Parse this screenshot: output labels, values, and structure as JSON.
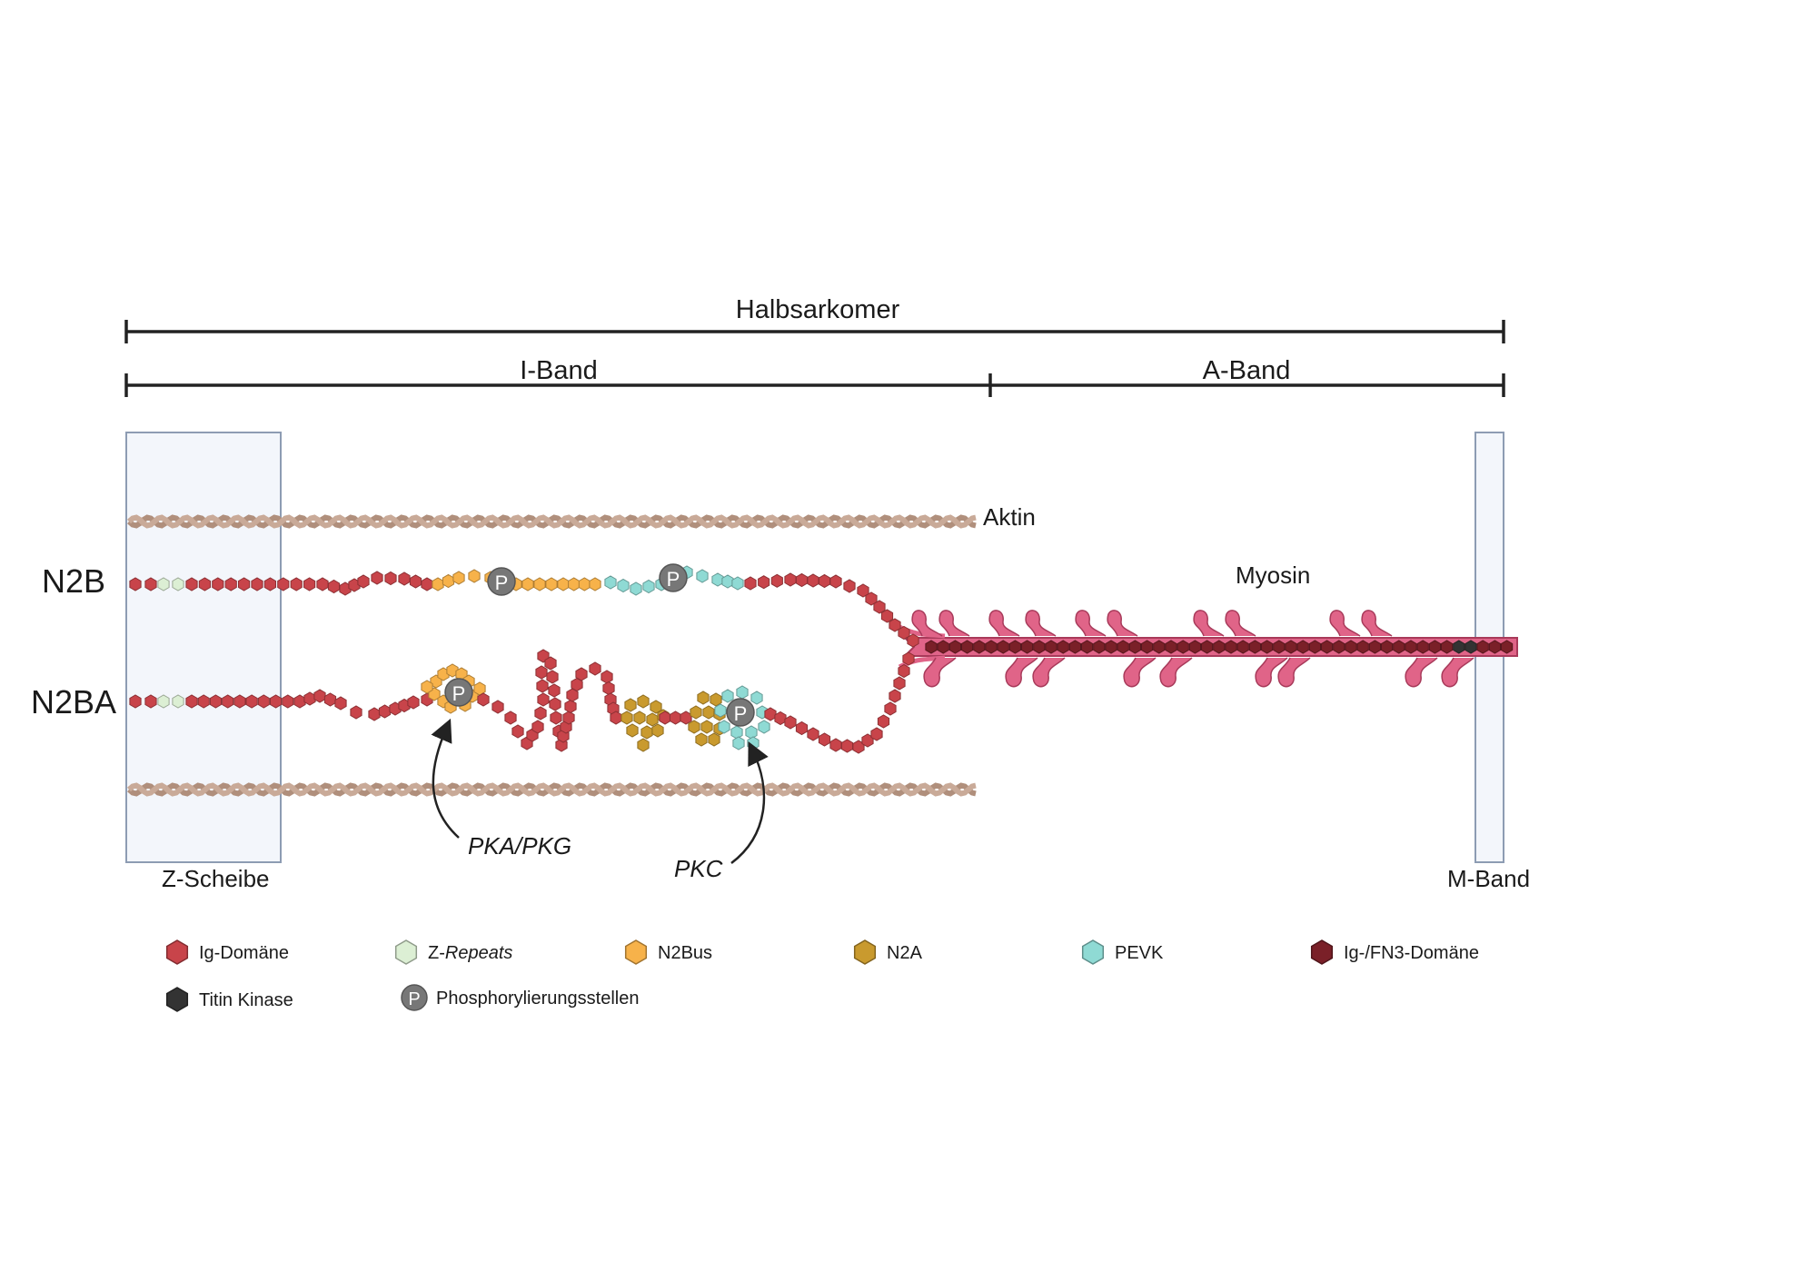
{
  "scale": {
    "halbsarkomer": "Halbsarkomer",
    "i_band": "I-Band",
    "a_band": "A-Band"
  },
  "structures": {
    "aktin": "Aktin",
    "myosin": "Myosin",
    "z_scheibe": "Z-Scheibe",
    "m_band": "M-Band"
  },
  "isoforms": {
    "n2b": "N2B",
    "n2ba": "N2BA"
  },
  "kinases": {
    "pka_pkg": "PKA/PKG",
    "pkc": "PKC"
  },
  "phospho_symbol": "P",
  "colors": {
    "ig": "#c8444a",
    "z_repeats": "#dcefd4",
    "n2bus": "#f7b24a",
    "n2a": "#c99a2e",
    "pevk": "#8fdad4",
    "ig_fn3": "#7a2028",
    "titin_kinase": "#333333",
    "phospho": "#777777",
    "actin": "#c9aa98",
    "myosin": "#e06488",
    "z_disc_fill": "#f3f6fb",
    "z_disc_stroke": "#8d9cb3"
  },
  "legend": [
    {
      "label": "Ig-Domäne",
      "label_italic": "",
      "color_key": "ig",
      "icon": "hexagon-icon"
    },
    {
      "label": "Z-",
      "label_italic": "Repeats",
      "color_key": "z_repeats",
      "icon": "hexagon-icon"
    },
    {
      "label": "N2Bus",
      "label_italic": "",
      "color_key": "n2bus",
      "icon": "hexagon-icon"
    },
    {
      "label": "N2A",
      "label_italic": "",
      "color_key": "n2a",
      "icon": "hexagon-icon"
    },
    {
      "label": "PEVK",
      "label_italic": "",
      "color_key": "pevk",
      "icon": "hexagon-icon"
    },
    {
      "label": "Ig-/FN3-Domäne",
      "label_italic": "",
      "color_key": "ig_fn3",
      "icon": "hexagon-icon"
    },
    {
      "label": "Titin Kinase",
      "label_italic": "",
      "color_key": "titin_kinase",
      "icon": "hexagon-icon"
    },
    {
      "label": "Phosphorylierungsstellen",
      "label_italic": "",
      "color_key": "phospho",
      "icon": "phospho-circle-icon"
    }
  ]
}
